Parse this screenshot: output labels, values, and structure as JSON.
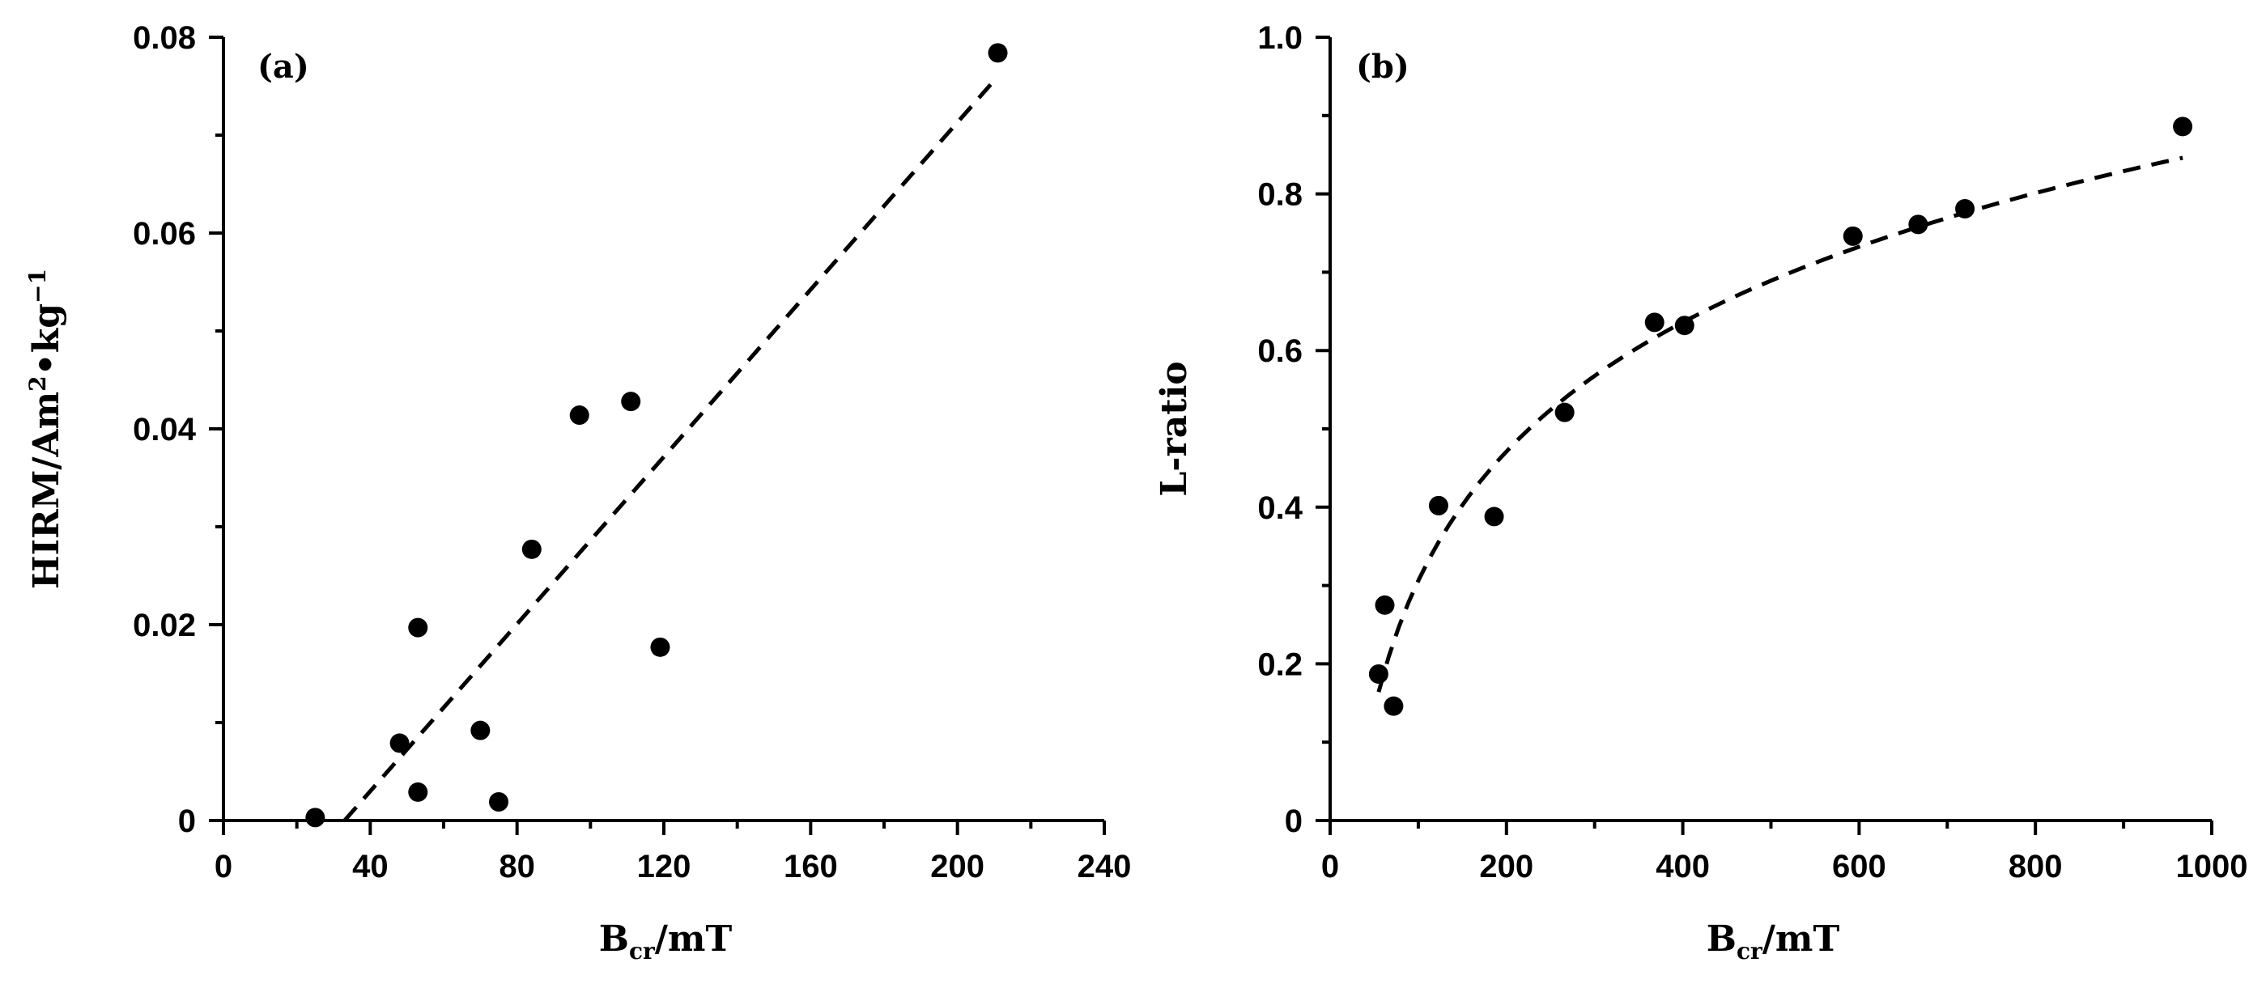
{
  "chart_data": [
    {
      "type": "scatter",
      "panel_label": "(a)",
      "xlabel": {
        "main": "B",
        "sub": "cr",
        "rest": "/mT"
      },
      "ylabel": {
        "main": "HIRM/Am",
        "sup1": "2",
        "mid": "•kg",
        "sup2": "−1"
      },
      "xlim": [
        0,
        240
      ],
      "ylim": [
        0,
        0.08
      ],
      "x_major_ticks": [
        0,
        40,
        80,
        120,
        160,
        200,
        240
      ],
      "x_tick_labels": [
        "0",
        "40",
        "80",
        "120",
        "160",
        "200",
        "240"
      ],
      "x_minor_ticks": [
        20,
        60,
        100,
        140,
        180,
        220
      ],
      "y_major_ticks": [
        0,
        0.02,
        0.04,
        0.06,
        0.08
      ],
      "y_tick_labels": [
        "0",
        "0.02",
        "0.04",
        "0.06",
        "0.08"
      ],
      "y_minor_ticks": [
        0.01,
        0.03,
        0.05,
        0.07
      ],
      "grid": false,
      "points": [
        [
          25,
          0.0003
        ],
        [
          48,
          0.0079
        ],
        [
          53,
          0.0197
        ],
        [
          53,
          0.0029
        ],
        [
          70,
          0.0092
        ],
        [
          75,
          0.0019
        ],
        [
          84,
          0.0277
        ],
        [
          97,
          0.0414
        ],
        [
          111,
          0.0428
        ],
        [
          119,
          0.0177
        ],
        [
          211,
          0.0784
        ]
      ],
      "fit": {
        "style": "dashed",
        "kind": "linear",
        "x": [
          33,
          211
        ],
        "y": [
          0.0,
          0.076
        ]
      }
    },
    {
      "type": "scatter",
      "panel_label": "(b)",
      "xlabel": {
        "main": "B",
        "sub": "cr",
        "rest": "/mT"
      },
      "ylabel": {
        "main": "L-ratio"
      },
      "xlim": [
        0,
        1000
      ],
      "ylim": [
        0,
        1.0
      ],
      "x_major_ticks": [
        0,
        200,
        400,
        600,
        800,
        1000
      ],
      "x_tick_labels": [
        "0",
        "200",
        "400",
        "600",
        "800",
        "1000"
      ],
      "x_minor_ticks": [
        100,
        300,
        500,
        700,
        900
      ],
      "y_major_ticks": [
        0,
        0.2,
        0.4,
        0.6,
        0.8,
        1.0
      ],
      "y_tick_labels": [
        "0",
        "0.2",
        "0.4",
        "0.6",
        "0.8",
        "1.0"
      ],
      "y_minor_ticks": [
        0.1,
        0.3,
        0.5,
        0.7,
        0.9
      ],
      "grid": false,
      "points": [
        [
          55,
          0.187
        ],
        [
          62,
          0.275
        ],
        [
          72,
          0.146
        ],
        [
          123,
          0.402
        ],
        [
          186,
          0.388
        ],
        [
          266,
          0.521
        ],
        [
          368,
          0.636
        ],
        [
          402,
          0.632
        ],
        [
          593,
          0.746
        ],
        [
          667,
          0.761
        ],
        [
          720,
          0.781
        ],
        [
          967,
          0.886
        ]
      ],
      "fit": {
        "style": "dashed",
        "kind": "logarithmic",
        "a": 0.2379,
        "b": -0.7893,
        "x_range": [
          55,
          967
        ]
      }
    }
  ]
}
